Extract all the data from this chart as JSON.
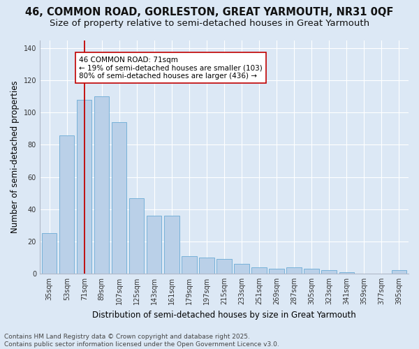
{
  "title": "46, COMMON ROAD, GORLESTON, GREAT YARMOUTH, NR31 0QF",
  "subtitle": "Size of property relative to semi-detached houses in Great Yarmouth",
  "xlabel": "Distribution of semi-detached houses by size in Great Yarmouth",
  "ylabel": "Number of semi-detached properties",
  "categories": [
    "35sqm",
    "53sqm",
    "71sqm",
    "89sqm",
    "107sqm",
    "125sqm",
    "143sqm",
    "161sqm",
    "179sqm",
    "197sqm",
    "215sqm",
    "233sqm",
    "251sqm",
    "269sqm",
    "287sqm",
    "305sqm",
    "323sqm",
    "341sqm",
    "359sqm",
    "377sqm",
    "395sqm"
  ],
  "values": [
    25,
    86,
    108,
    110,
    94,
    47,
    36,
    36,
    11,
    10,
    9,
    6,
    4,
    3,
    4,
    3,
    2,
    1,
    0,
    0,
    2
  ],
  "bar_color": "#bad0e8",
  "bar_edge_color": "#6aaad4",
  "highlight_color": "#c00000",
  "annotation_text": "46 COMMON ROAD: 71sqm\n← 19% of semi-detached houses are smaller (103)\n80% of semi-detached houses are larger (436) →",
  "annotation_box_color": "#ffffff",
  "annotation_box_edge_color": "#c00000",
  "vline_x_index": 2,
  "ylim": [
    0,
    145
  ],
  "yticks": [
    0,
    20,
    40,
    60,
    80,
    100,
    120,
    140
  ],
  "plot_bg_color": "#dce8f5",
  "fig_bg_color": "#dce8f5",
  "footer": "Contains HM Land Registry data © Crown copyright and database right 2025.\nContains public sector information licensed under the Open Government Licence v3.0.",
  "title_fontsize": 10.5,
  "subtitle_fontsize": 9.5,
  "xlabel_fontsize": 8.5,
  "ylabel_fontsize": 8.5,
  "tick_fontsize": 7,
  "annot_fontsize": 7.5,
  "footer_fontsize": 6.5
}
